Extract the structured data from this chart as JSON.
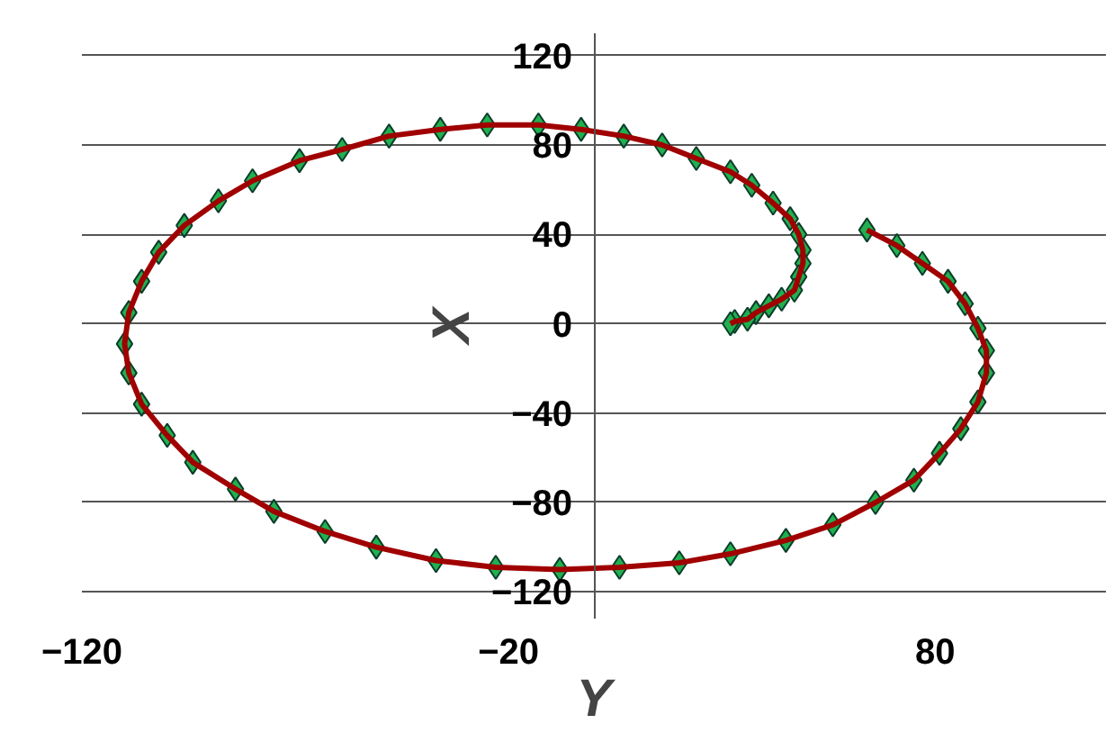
{
  "chart_data": {
    "type": "line",
    "xlabel": "Y",
    "ylabel": "X",
    "xlim": [
      -120,
      120
    ],
    "ylim": [
      -132,
      130
    ],
    "xticks": [
      -120,
      -20,
      80
    ],
    "yticks": [
      -120,
      -80,
      -40,
      0,
      40,
      80,
      120
    ],
    "grid": "y",
    "marker": "diamond",
    "line_style": "solid",
    "series": [
      {
        "color": "#a00000",
        "colors": [
          "#21b050",
          "#21b050",
          "#21b050",
          "#21b050",
          "#21b050",
          "#21b050",
          "#21b050",
          "#21b050",
          "#21b050",
          "#21b050",
          "#21b050",
          "#21b050",
          "#21b050",
          "#21b050",
          "#21b050",
          "#21b050",
          "#21b050",
          "#21b050",
          "#21b050",
          "#21b050",
          "#21b050",
          "#21b050",
          "#21b050",
          "#21b050",
          "#21b050",
          "#21b050",
          "#21b050",
          "#21b050",
          "#21b050",
          "#21b050",
          "#21b050",
          "#21b050",
          "#21b050",
          "#21b050",
          "#21b050",
          "#21b050",
          "#21b050",
          "#21b050",
          "#21b050",
          "#21b050",
          "#21b050",
          "#21b050",
          "#21b050",
          "#21b050",
          "#21b050",
          "#21b050",
          "#21b050",
          "#21b050",
          "#21b050",
          "#21b050",
          "#21b050",
          "#21b050",
          "#21b050",
          "#21b050",
          "#21b050",
          "#21b050",
          "#21b050",
          "#21b050",
          "#21b050",
          "#21b050",
          "#21b050"
        ],
        "x": [
          64,
          71,
          77,
          83,
          87,
          90,
          92,
          92,
          90,
          86,
          81,
          75,
          66,
          56,
          45,
          32,
          20,
          6,
          -8,
          -23,
          -37,
          -51,
          -63,
          -75,
          -84,
          -94,
          -100,
          -106,
          -109,
          -110,
          -109,
          -106,
          -102,
          -96,
          -88,
          -80,
          -69,
          -59,
          -48,
          -36,
          -25,
          -13,
          -3,
          7,
          16,
          24,
          32,
          37,
          42,
          46,
          48,
          49,
          49,
          48,
          47,
          44,
          41,
          38,
          36,
          33,
          32
        ],
        "values": [
          42,
          35,
          27,
          19,
          9,
          -2,
          -12,
          -22,
          -35,
          -47,
          -58,
          -70,
          -80,
          -90,
          -97,
          -103,
          -107,
          -109,
          -110,
          -109,
          -106,
          -100,
          -93,
          -84,
          -74,
          -62,
          -50,
          -36,
          -22,
          -9,
          5,
          19,
          32,
          44,
          55,
          64,
          73,
          78,
          84,
          87,
          89,
          89,
          87,
          84,
          80,
          74,
          68,
          62,
          54,
          47,
          40,
          33,
          27,
          21,
          15,
          11,
          8,
          5,
          2,
          1,
          0
        ]
      }
    ]
  }
}
